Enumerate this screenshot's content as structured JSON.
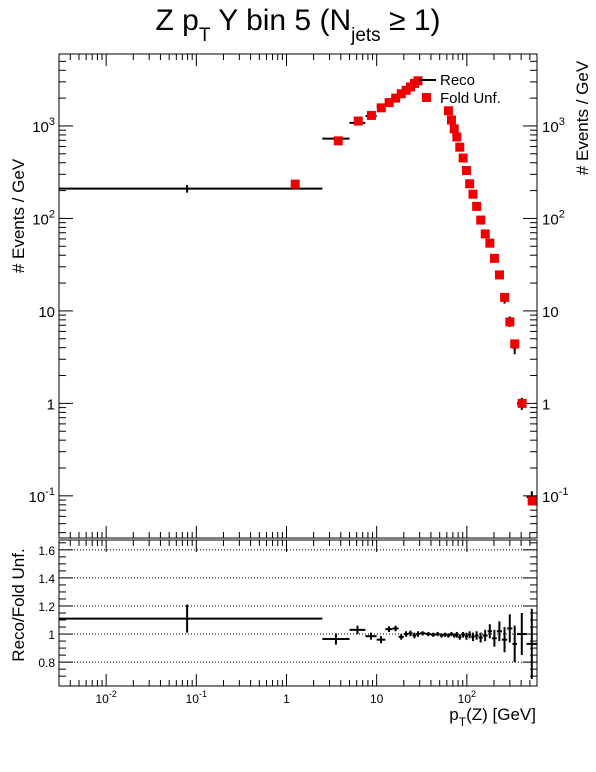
{
  "chart_data": [
    {
      "type": "scatter",
      "title_main": "Z p",
      "title_sub_T": "T",
      "title_mid": " Y bin 5 (N",
      "title_sub_jets": "jets",
      "title_end": " ≥ 1)",
      "ylabel": "# Events / GeV",
      "ylabel_right": "# Events / GeV",
      "xscale": "log",
      "yscale": "log",
      "xlim": [
        0.003,
        600
      ],
      "ylim": [
        0.035,
        6000
      ],
      "yticks": [
        {
          "v": 0.1,
          "base": "10",
          "exp": "-1"
        },
        {
          "v": 1,
          "base": "1",
          "exp": ""
        },
        {
          "v": 10,
          "base": "10",
          "exp": ""
        },
        {
          "v": 100,
          "base": "10",
          "exp": "2"
        },
        {
          "v": 1000,
          "base": "10",
          "exp": "3"
        }
      ],
      "legend": {
        "position": "top-right",
        "entries": [
          "Reco",
          "Fold Unf."
        ]
      },
      "series": [
        {
          "name": "Reco",
          "style": "errorbar",
          "color": "#000000",
          "points": [
            {
              "xlo": 0.0025,
              "xhi": 2.5,
              "y": 210,
              "yerr": 20
            },
            {
              "xlo": 2.5,
              "xhi": 5,
              "y": 730,
              "yerr": 30
            },
            {
              "xlo": 5,
              "xhi": 7.5,
              "y": 1080,
              "yerr": 30
            },
            {
              "xlo": 7.5,
              "xhi": 10,
              "y": 1280,
              "yerr": 30
            },
            {
              "xlo": 10,
              "xhi": 12.5,
              "y": 1630,
              "yerr": 35
            },
            {
              "xlo": 12.5,
              "xhi": 15,
              "y": 1860,
              "yerr": 35
            },
            {
              "xlo": 15,
              "xhi": 17.5,
              "y": 2050,
              "yerr": 40
            },
            {
              "xlo": 17.5,
              "xhi": 20,
              "y": 2230,
              "yerr": 40
            },
            {
              "xlo": 20,
              "xhi": 22.5,
              "y": 2450,
              "yerr": 45
            },
            {
              "xlo": 22.5,
              "xhi": 25,
              "y": 2650,
              "yerr": 45
            },
            {
              "xlo": 25,
              "xhi": 27.5,
              "y": 2850,
              "yerr": 50
            },
            {
              "xlo": 27.5,
              "xhi": 30,
              "y": 3050,
              "yerr": 50
            },
            {
              "xlo": 60,
              "xhi": 65,
              "y": 1420,
              "yerr": 30
            },
            {
              "xlo": 65,
              "xhi": 70,
              "y": 1130,
              "yerr": 25
            },
            {
              "xlo": 70,
              "xhi": 75,
              "y": 920,
              "yerr": 25
            },
            {
              "xlo": 75,
              "xhi": 80,
              "y": 750,
              "yerr": 20
            },
            {
              "xlo": 80,
              "xhi": 87,
              "y": 580,
              "yerr": 20
            },
            {
              "xlo": 87,
              "xhi": 95,
              "y": 440,
              "yerr": 15
            },
            {
              "xlo": 95,
              "xhi": 103,
              "y": 320,
              "yerr": 12
            },
            {
              "xlo": 103,
              "xhi": 112,
              "y": 232,
              "yerr": 10
            },
            {
              "xlo": 112,
              "xhi": 122,
              "y": 177,
              "yerr": 8
            },
            {
              "xlo": 122,
              "xhi": 135,
              "y": 132,
              "yerr": 6
            },
            {
              "xlo": 135,
              "xhi": 150,
              "y": 93,
              "yerr": 5
            },
            {
              "xlo": 150,
              "xhi": 170,
              "y": 65,
              "yerr": 4
            },
            {
              "xlo": 170,
              "xhi": 190,
              "y": 52,
              "yerr": 3
            },
            {
              "xlo": 190,
              "xhi": 215,
              "y": 36,
              "yerr": 2.5
            },
            {
              "xlo": 215,
              "xhi": 245,
              "y": 24,
              "yerr": 2
            },
            {
              "xlo": 245,
              "xhi": 280,
              "y": 13.5,
              "yerr": 1.5
            },
            {
              "xlo": 280,
              "xhi": 320,
              "y": 7.7,
              "yerr": 1
            },
            {
              "xlo": 320,
              "xhi": 360,
              "y": 4.0,
              "yerr": 0.6
            },
            {
              "xlo": 360,
              "xhi": 460,
              "y": 1.0,
              "yerr": 0.15
            },
            {
              "xlo": 460,
              "xhi": 600,
              "y": 0.097,
              "yerr": 0.015
            }
          ]
        },
        {
          "name": "Fold Unf.",
          "style": "marker",
          "color": "#ee0000",
          "points": [
            {
              "x": 1.25,
              "y": 235
            },
            {
              "x": 3.75,
              "y": 690
            },
            {
              "x": 6.25,
              "y": 1130
            },
            {
              "x": 8.75,
              "y": 1300
            },
            {
              "x": 11.25,
              "y": 1570
            },
            {
              "x": 13.75,
              "y": 1790
            },
            {
              "x": 16.25,
              "y": 2000
            },
            {
              "x": 18.75,
              "y": 2230
            },
            {
              "x": 21.25,
              "y": 2430
            },
            {
              "x": 23.75,
              "y": 2640
            },
            {
              "x": 26.25,
              "y": 2880
            },
            {
              "x": 28.75,
              "y": 3080
            },
            {
              "x": 62.5,
              "y": 1460
            },
            {
              "x": 67.5,
              "y": 1160
            },
            {
              "x": 72.5,
              "y": 930
            },
            {
              "x": 77.5,
              "y": 760
            },
            {
              "x": 83.5,
              "y": 590
            },
            {
              "x": 91,
              "y": 450
            },
            {
              "x": 99,
              "y": 330
            },
            {
              "x": 107.5,
              "y": 237
            },
            {
              "x": 117,
              "y": 183
            },
            {
              "x": 128.5,
              "y": 135
            },
            {
              "x": 142.5,
              "y": 96
            },
            {
              "x": 160,
              "y": 68
            },
            {
              "x": 180,
              "y": 54
            },
            {
              "x": 202.5,
              "y": 37
            },
            {
              "x": 230,
              "y": 24.5
            },
            {
              "x": 262.5,
              "y": 14
            },
            {
              "x": 300,
              "y": 7.6
            },
            {
              "x": 340,
              "y": 4.4
            },
            {
              "x": 410,
              "y": 1.0
            },
            {
              "x": 530,
              "y": 0.088
            }
          ]
        }
      ]
    },
    {
      "type": "scatter",
      "xlabel_main": "p",
      "xlabel_sub": "T",
      "xlabel_end": "(Z) [GeV]",
      "ylabel": "Reco/Fold Unf.",
      "xscale": "log",
      "xlim": [
        0.003,
        600
      ],
      "ylim": [
        0.63,
        1.67
      ],
      "yticks": [
        0.8,
        1,
        1.2,
        1.4,
        1.6
      ],
      "ytick_labels": [
        "0.8",
        "1",
        "1.2",
        "1.4",
        "1.6"
      ],
      "xticks": [
        {
          "v": 0.01,
          "base": "10",
          "exp": "-2"
        },
        {
          "v": 0.1,
          "base": "10",
          "exp": "-1"
        },
        {
          "v": 1,
          "base": "1",
          "exp": ""
        },
        {
          "v": 10,
          "base": "10",
          "exp": ""
        },
        {
          "v": 100,
          "base": "10",
          "exp": "2"
        }
      ],
      "grid": "horizontal dotted",
      "series": [
        {
          "name": "Reco/Fold Unf.",
          "color": "#000000",
          "points": [
            {
              "xlo": 0.0025,
              "xhi": 2.5,
              "y": 1.11,
              "yerr": 0.1
            },
            {
              "xlo": 2.5,
              "xhi": 5,
              "y": 0.965,
              "yerr": 0.04
            },
            {
              "xlo": 5,
              "xhi": 7.5,
              "y": 1.03,
              "yerr": 0.03
            },
            {
              "xlo": 7.5,
              "xhi": 10,
              "y": 0.985,
              "yerr": 0.025
            },
            {
              "xlo": 10,
              "xhi": 12.5,
              "y": 0.96,
              "yerr": 0.025
            },
            {
              "xlo": 12.5,
              "xhi": 15,
              "y": 1.035,
              "yerr": 0.02
            },
            {
              "xlo": 15,
              "xhi": 17.5,
              "y": 1.04,
              "yerr": 0.02
            },
            {
              "xlo": 17.5,
              "xhi": 20,
              "y": 0.98,
              "yerr": 0.02
            },
            {
              "xlo": 20,
              "xhi": 22.5,
              "y": 1.0,
              "yerr": 0.02
            },
            {
              "xlo": 22.5,
              "xhi": 25,
              "y": 1.005,
              "yerr": 0.02
            },
            {
              "xlo": 25,
              "xhi": 27.5,
              "y": 0.99,
              "yerr": 0.02
            },
            {
              "xlo": 27.5,
              "xhi": 30,
              "y": 1.0,
              "yerr": 0.02
            },
            {
              "xlo": 30,
              "xhi": 35,
              "y": 1.005,
              "yerr": 0.015
            },
            {
              "xlo": 35,
              "xhi": 40,
              "y": 1.0,
              "yerr": 0.015
            },
            {
              "xlo": 40,
              "xhi": 45,
              "y": 0.995,
              "yerr": 0.015
            },
            {
              "xlo": 45,
              "xhi": 50,
              "y": 1.0,
              "yerr": 0.015
            },
            {
              "xlo": 50,
              "xhi": 55,
              "y": 0.99,
              "yerr": 0.015
            },
            {
              "xlo": 55,
              "xhi": 60,
              "y": 0.995,
              "yerr": 0.015
            },
            {
              "xlo": 60,
              "xhi": 65,
              "y": 0.99,
              "yerr": 0.015
            },
            {
              "xlo": 65,
              "xhi": 70,
              "y": 1.0,
              "yerr": 0.015
            },
            {
              "xlo": 70,
              "xhi": 75,
              "y": 0.99,
              "yerr": 0.015
            },
            {
              "xlo": 75,
              "xhi": 80,
              "y": 0.995,
              "yerr": 0.02
            },
            {
              "xlo": 80,
              "xhi": 87,
              "y": 0.98,
              "yerr": 0.02
            },
            {
              "xlo": 87,
              "xhi": 95,
              "y": 0.995,
              "yerr": 0.02
            },
            {
              "xlo": 95,
              "xhi": 103,
              "y": 0.985,
              "yerr": 0.025
            },
            {
              "xlo": 103,
              "xhi": 112,
              "y": 0.995,
              "yerr": 0.025
            },
            {
              "xlo": 112,
              "xhi": 122,
              "y": 0.98,
              "yerr": 0.03
            },
            {
              "xlo": 122,
              "xhi": 135,
              "y": 0.99,
              "yerr": 0.03
            },
            {
              "xlo": 135,
              "xhi": 150,
              "y": 0.975,
              "yerr": 0.035
            },
            {
              "xlo": 150,
              "xhi": 170,
              "y": 0.99,
              "yerr": 0.04
            },
            {
              "xlo": 170,
              "xhi": 190,
              "y": 1.02,
              "yerr": 0.05
            },
            {
              "xlo": 190,
              "xhi": 215,
              "y": 0.97,
              "yerr": 0.06
            },
            {
              "xlo": 215,
              "xhi": 245,
              "y": 1.02,
              "yerr": 0.07
            },
            {
              "xlo": 245,
              "xhi": 280,
              "y": 0.96,
              "yerr": 0.09
            },
            {
              "xlo": 280,
              "xhi": 320,
              "y": 1.04,
              "yerr": 0.1
            },
            {
              "xlo": 320,
              "xhi": 360,
              "y": 0.93,
              "yerr": 0.13
            },
            {
              "xlo": 360,
              "xhi": 460,
              "y": 1.0,
              "yerr": 0.15
            },
            {
              "xlo": 460,
              "xhi": 600,
              "y": 0.93,
              "yerr": 0.25
            }
          ]
        }
      ]
    }
  ]
}
